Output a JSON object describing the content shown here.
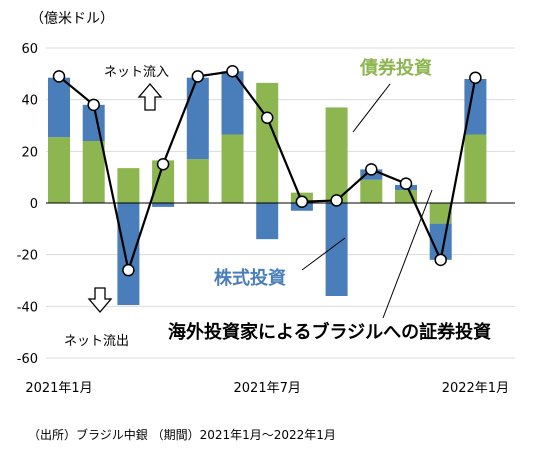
{
  "unit_label": "（億米ドル）",
  "source_note": "（出所）ブラジル中銀 （期間）2021年1月～2022年1月",
  "chart_data": {
    "type": "bar",
    "stacked": true,
    "title": "海外投資家によるブラジルへの証券投資",
    "ylim": [
      -60,
      60
    ],
    "yticks": [
      -60,
      -40,
      -20,
      0,
      20,
      40,
      60
    ],
    "x_tick_labels": [
      {
        "index": 0,
        "label": "2021年1月"
      },
      {
        "index": 6,
        "label": "2021年7月"
      },
      {
        "index": 12,
        "label": "2022年1月"
      }
    ],
    "categories": [
      "2021-01",
      "2021-02",
      "2021-03",
      "2021-04",
      "2021-05",
      "2021-06",
      "2021-07",
      "2021-08",
      "2021-09",
      "2021-10",
      "2021-11",
      "2021-12",
      "2022-01"
    ],
    "series": [
      {
        "name": "債券投資",
        "kind": "bar",
        "color": "#8db550",
        "values": [
          25.5,
          24,
          13.5,
          16.5,
          17,
          26.5,
          46.5,
          4,
          37,
          9,
          5,
          -8,
          26.5
        ]
      },
      {
        "name": "株式投資",
        "kind": "bar",
        "color": "#4a7ebb",
        "values": [
          23,
          14,
          -39.5,
          -1.5,
          31.5,
          24.5,
          -14,
          -3,
          -36,
          4,
          2,
          -14,
          21.5
        ]
      },
      {
        "name": "合計",
        "kind": "line",
        "color": "#000000",
        "values": [
          49,
          38,
          -26,
          15,
          49,
          51,
          33,
          0.5,
          1,
          13,
          7.5,
          -22,
          48.5
        ]
      }
    ],
    "annotations": {
      "bond_label": "債券投資",
      "equity_label": "株式投資",
      "net_inflow": "ネット流入",
      "net_outflow": "ネット流出"
    }
  }
}
